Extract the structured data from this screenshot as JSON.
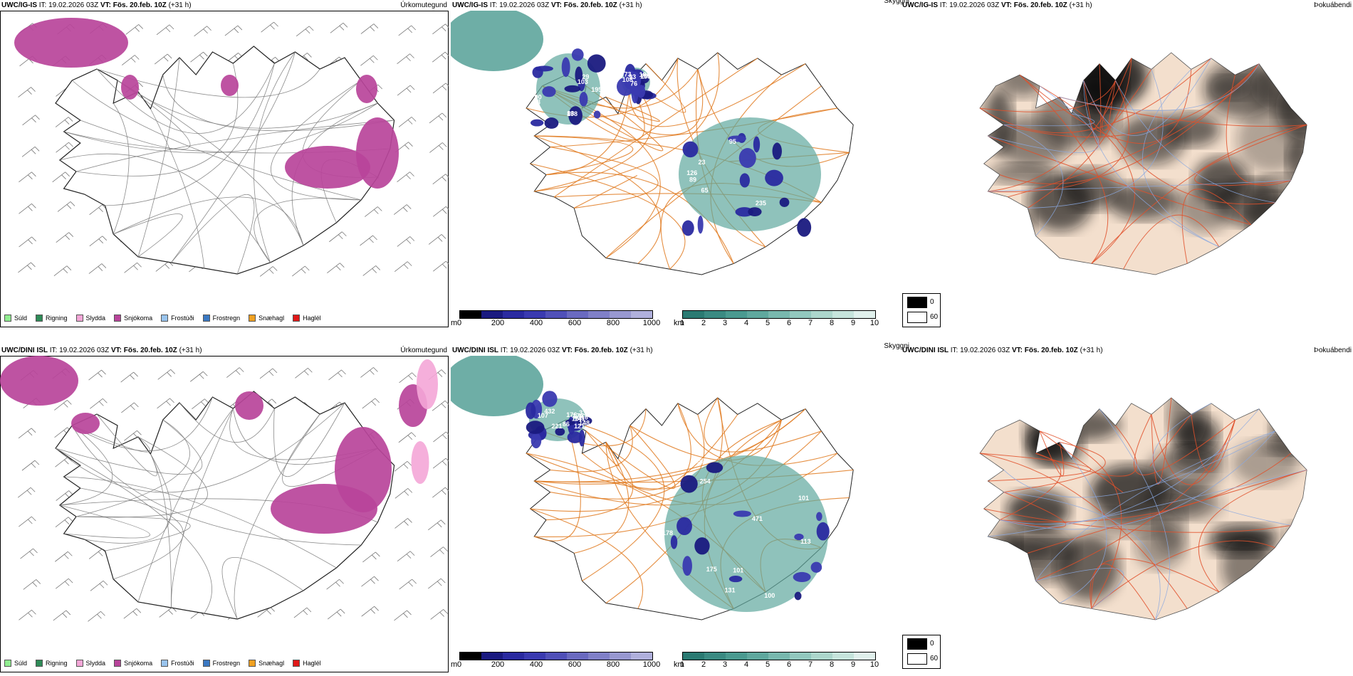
{
  "panels": [
    {
      "model": "UWC/IG-IS",
      "it_label": "IT:",
      "it_value": "19.02.2026 03Z",
      "vt_label": "VT:",
      "vt_value": "Fös. 20.feb. 10Z",
      "offset": "(+31 h)",
      "kind": "Úrkomutegund"
    },
    {
      "model": "UWC/IG-IS",
      "it_label": "IT:",
      "it_value": "19.02.2026 03Z",
      "vt_label": "VT:",
      "vt_value": "Fös. 20.feb. 10Z",
      "offset": "(+31 h)",
      "kind": "Skyggni"
    },
    {
      "model": "UWC/IG-IS",
      "it_label": "IT:",
      "it_value": "19.02.2026 03Z",
      "vt_label": "VT:",
      "vt_value": "Fös. 20.feb. 10Z",
      "offset": "(+31 h)",
      "kind": "Þokuábendi"
    },
    {
      "model": "UWC/DINI ISL",
      "it_label": "IT:",
      "it_value": "19.02.2026 03Z",
      "vt_label": "VT:",
      "vt_value": "Fös. 20.feb. 10Z",
      "offset": "(+31 h)",
      "kind": "Úrkomutegund"
    },
    {
      "model": "UWC/DINI ISL",
      "it_label": "IT:",
      "it_value": "19.02.2026 03Z",
      "vt_label": "VT:",
      "vt_value": "Fös. 20.feb. 10Z",
      "offset": "(+31 h)",
      "kind": "Skyggni"
    },
    {
      "model": "UWC/DINI ISL",
      "it_label": "IT:",
      "it_value": "19.02.2026 03Z",
      "vt_label": "VT:",
      "vt_value": "Fös. 20.feb. 10Z",
      "offset": "(+31 h)",
      "kind": "Þokuábendi"
    }
  ],
  "precip_legend": [
    {
      "label": "Súld",
      "color": "#90ee90"
    },
    {
      "label": "Rigning",
      "color": "#2e8b57"
    },
    {
      "label": "Slydda",
      "color": "#f4a6d7"
    },
    {
      "label": "Snjókoma",
      "color": "#b8449a"
    },
    {
      "label": "Frostúði",
      "color": "#99c4ee"
    },
    {
      "label": "Frostregn",
      "color": "#3a78c2"
    },
    {
      "label": "Snæhagl",
      "color": "#f0a020"
    },
    {
      "label": "Haglél",
      "color": "#e01818"
    }
  ],
  "vis_m_bar": {
    "unit": "m",
    "ticks": [
      "0",
      "200",
      "400",
      "600",
      "800",
      "1000"
    ],
    "colors": [
      "#000000",
      "#1a1a80",
      "#2a2aa0",
      "#3a3ab0",
      "#5050b8",
      "#6a6ac0",
      "#8080c8",
      "#9898d0",
      "#b0b0dc"
    ]
  },
  "vis_km_bar": {
    "unit": "km",
    "ticks": [
      "1",
      "2",
      "3",
      "4",
      "5",
      "6",
      "7",
      "8",
      "9",
      "10"
    ],
    "colors": [
      "#2a7a72",
      "#3a8a82",
      "#4a9a90",
      "#5fa89e",
      "#78b8ae",
      "#92c8be",
      "#acd6cc",
      "#c6e4dc",
      "#e0f0ec"
    ]
  },
  "fog_legend": {
    "high": "0",
    "low": "60",
    "high_color": "#000000",
    "low_color": "#ffffff"
  },
  "vis_labels_top": [
    "89",
    "90",
    "93",
    "95",
    "98",
    "76",
    "126",
    "83",
    "184",
    "235",
    "195",
    "155",
    "23",
    "198",
    "208",
    "65",
    "103",
    "108",
    "21",
    "29",
    "73"
  ],
  "vis_labels_bottom": [
    "101",
    "157",
    "175",
    "86",
    "101",
    "176",
    "259",
    "316",
    "113",
    "121",
    "100",
    "148",
    "156",
    "141",
    "131",
    "176",
    "178",
    "221",
    "207",
    "432",
    "471",
    "107",
    "254",
    "336"
  ]
}
